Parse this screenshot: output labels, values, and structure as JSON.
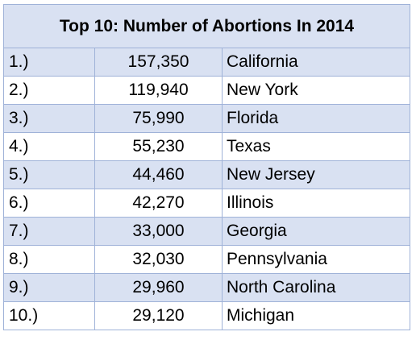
{
  "chart_data": {
    "type": "table",
    "title": "Top 10: Number of Abortions In 2014",
    "rows": [
      {
        "rank": "1.)",
        "value": "157,350",
        "state": "California"
      },
      {
        "rank": "2.)",
        "value": "119,940",
        "state": "New York"
      },
      {
        "rank": "3.)",
        "value": "75,990",
        "state": "Florida"
      },
      {
        "rank": "4.)",
        "value": "55,230",
        "state": "Texas"
      },
      {
        "rank": "5.)",
        "value": "44,460",
        "state": "New Jersey"
      },
      {
        "rank": "6.)",
        "value": "42,270",
        "state": "Illinois"
      },
      {
        "rank": "7.)",
        "value": "33,000",
        "state": "Georgia"
      },
      {
        "rank": "8.)",
        "value": "32,030",
        "state": "Pennsylvania"
      },
      {
        "rank": "9.)",
        "value": "29,960",
        "state": "North Carolina"
      },
      {
        "rank": "10.)",
        "value": "29,120",
        "state": "Michigan"
      }
    ]
  },
  "colors": {
    "header_fill": "#d9e1f2",
    "shaded_row_fill": "#d9e1f2",
    "plain_row_fill": "#ffffff",
    "border": "#9fb2d8"
  }
}
